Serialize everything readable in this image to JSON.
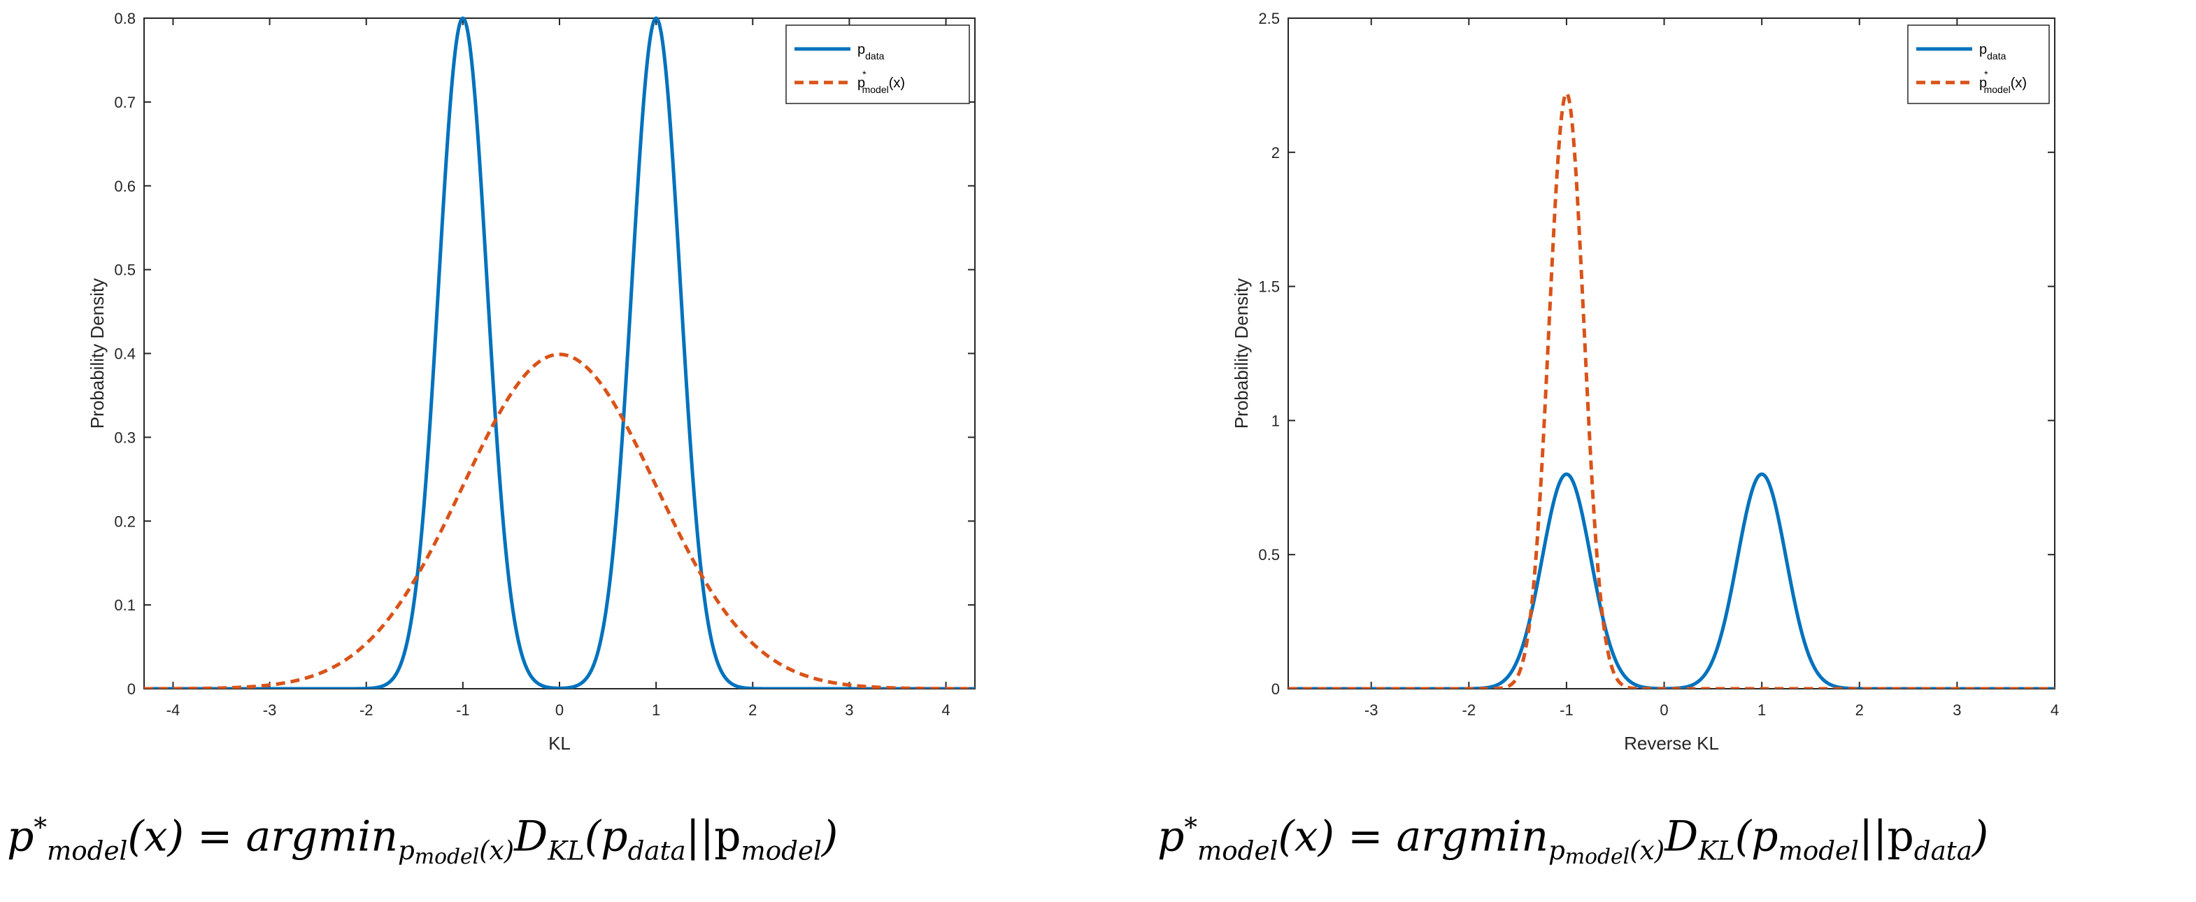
{
  "chart_data": [
    {
      "type": "line",
      "title": "",
      "xlabel": "KL",
      "ylabel": "Probability Density",
      "xlim": [
        -4.3,
        4.3
      ],
      "ylim": [
        0,
        0.8
      ],
      "xticks": [
        -4,
        -3,
        -2,
        -1,
        0,
        1,
        2,
        3,
        4
      ],
      "xtick_labels": [
        "-4",
        "-3",
        "-2",
        "-1",
        "0",
        "1",
        "2",
        "3",
        "4"
      ],
      "yticks": [
        0,
        0.1,
        0.2,
        0.3,
        0.4,
        0.5,
        0.6,
        0.7,
        0.8
      ],
      "ytick_labels": [
        "0",
        "0.1",
        "0.2",
        "0.3",
        "0.4",
        "0.5",
        "0.6",
        "0.7",
        "0.8"
      ],
      "legend_position": "top-right",
      "series": [
        {
          "name": "p_data",
          "legend_main": "p",
          "legend_sub": "data",
          "legend_sup": "",
          "legend_suffix": "",
          "style": "solid",
          "color": "#0072BD",
          "components": [
            {
              "mean": -1,
              "sd": 0.25,
              "peak": 0.8
            },
            {
              "mean": 1,
              "sd": 0.25,
              "peak": 0.8
            }
          ]
        },
        {
          "name": "p*_model(x)",
          "legend_main": "p",
          "legend_sub": "model",
          "legend_sup": "*",
          "legend_suffix": "(x)",
          "style": "dashed",
          "color": "#D95319",
          "components": [
            {
              "mean": 0,
              "sd": 1,
              "peak": 0.3989
            }
          ]
        }
      ]
    },
    {
      "type": "line",
      "title": "",
      "xlabel": "Reverse KL",
      "ylabel": "Probability Density",
      "xlim": [
        -3.85,
        4.0
      ],
      "ylim": [
        0,
        2.5
      ],
      "xticks": [
        -3,
        -2,
        -1,
        0,
        1,
        2,
        3,
        4
      ],
      "xtick_labels": [
        "-3",
        "-2",
        "-1",
        "0",
        "1",
        "2",
        "3",
        "4"
      ],
      "yticks": [
        0,
        0.5,
        1,
        1.5,
        2,
        2.5
      ],
      "ytick_labels": [
        "0",
        "0.5",
        "1",
        "1.5",
        "2",
        "2.5"
      ],
      "legend_position": "top-right",
      "series": [
        {
          "name": "p_data",
          "legend_main": "p",
          "legend_sub": "data",
          "legend_sup": "",
          "legend_suffix": "",
          "style": "solid",
          "color": "#0072BD",
          "components": [
            {
              "mean": -1,
              "sd": 0.25,
              "peak": 0.8
            },
            {
              "mean": 1,
              "sd": 0.25,
              "peak": 0.8
            }
          ]
        },
        {
          "name": "p*_model(x)",
          "legend_main": "p",
          "legend_sub": "model",
          "legend_sup": "*",
          "legend_suffix": "(x)",
          "style": "dashed",
          "color": "#D95319",
          "components": [
            {
              "mean": -1,
              "sd": 0.18,
              "peak": 2.22
            }
          ]
        }
      ]
    }
  ],
  "formulas": {
    "left": {
      "lhs_main": "p",
      "lhs_sup": "*",
      "lhs_sub": "model",
      "lhs_arg": "(x) = ",
      "argmin": "argmin",
      "argmin_sub_main": "p",
      "argmin_sub_sub": "model",
      "argmin_sub_arg": "(x)",
      "d": "D",
      "d_sub": "KL",
      "body": "(p",
      "body_sub1": "data",
      "sep": "||p",
      "body_sub2": "model",
      "close": ")"
    },
    "right": {
      "lhs_main": "p",
      "lhs_sup": "*",
      "lhs_sub": "model",
      "lhs_arg": "(x) = ",
      "argmin": "argmin",
      "argmin_sub_main": "p",
      "argmin_sub_sub": "model",
      "argmin_sub_arg": "(x)",
      "d": "D",
      "d_sub": "KL",
      "body": "(p",
      "body_sub1": "model",
      "sep": "||p",
      "body_sub2": "data",
      "close": ")"
    }
  }
}
